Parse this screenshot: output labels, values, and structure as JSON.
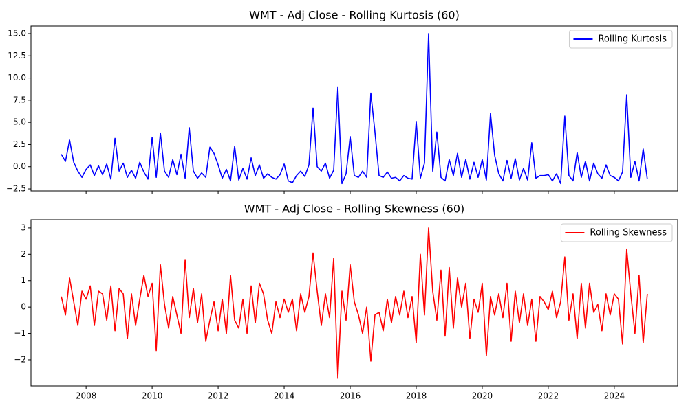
{
  "chart_data": [
    {
      "type": "line",
      "title": "WMT - Adj Close - Rolling Kurtosis (60)",
      "legend": "upper right",
      "x": [
        2007.25,
        2007.375,
        2007.5,
        2007.625,
        2007.75,
        2007.875,
        2008.0,
        2008.125,
        2008.25,
        2008.375,
        2008.5,
        2008.625,
        2008.75,
        2008.875,
        2009.0,
        2009.125,
        2009.25,
        2009.375,
        2009.5,
        2009.625,
        2009.75,
        2009.875,
        2010.0,
        2010.125,
        2010.25,
        2010.375,
        2010.5,
        2010.625,
        2010.75,
        2010.875,
        2011.0,
        2011.125,
        2011.25,
        2011.375,
        2011.5,
        2011.625,
        2011.75,
        2011.875,
        2012.0,
        2012.125,
        2012.25,
        2012.375,
        2012.5,
        2012.625,
        2012.75,
        2012.875,
        2013.0,
        2013.125,
        2013.25,
        2013.375,
        2013.5,
        2013.625,
        2013.75,
        2013.875,
        2014.0,
        2014.125,
        2014.25,
        2014.375,
        2014.5,
        2014.625,
        2014.75,
        2014.875,
        2015.0,
        2015.125,
        2015.25,
        2015.375,
        2015.5,
        2015.625,
        2015.75,
        2015.875,
        2016.0,
        2016.125,
        2016.25,
        2016.375,
        2016.5,
        2016.625,
        2016.75,
        2016.875,
        2017.0,
        2017.125,
        2017.25,
        2017.375,
        2017.5,
        2017.625,
        2017.75,
        2017.875,
        2018.0,
        2018.125,
        2018.25,
        2018.375,
        2018.5,
        2018.625,
        2018.75,
        2018.875,
        2019.0,
        2019.125,
        2019.25,
        2019.375,
        2019.5,
        2019.625,
        2019.75,
        2019.875,
        2020.0,
        2020.125,
        2020.25,
        2020.375,
        2020.5,
        2020.625,
        2020.75,
        2020.875,
        2021.0,
        2021.125,
        2021.25,
        2021.375,
        2021.5,
        2021.625,
        2021.75,
        2021.875,
        2022.0,
        2022.125,
        2022.25,
        2022.375,
        2022.5,
        2022.625,
        2022.75,
        2022.875,
        2023.0,
        2023.125,
        2023.25,
        2023.375,
        2023.5,
        2023.625,
        2023.75,
        2023.875,
        2024.0,
        2024.125,
        2024.25,
        2024.375,
        2024.5,
        2024.625,
        2024.75,
        2024.875,
        2025.0
      ],
      "series": [
        {
          "name": "Rolling Kurtosis",
          "color": "#0000ff",
          "values": [
            1.4,
            0.6,
            3.0,
            0.5,
            -0.5,
            -1.2,
            -0.3,
            0.2,
            -1.0,
            0.1,
            -0.9,
            0.3,
            -1.4,
            3.2,
            -0.5,
            0.4,
            -1.2,
            -0.4,
            -1.3,
            0.5,
            -0.6,
            -1.4,
            3.3,
            -1.2,
            3.8,
            -0.5,
            -1.2,
            0.8,
            -0.9,
            1.4,
            -1.3,
            4.4,
            -0.5,
            -1.3,
            -0.7,
            -1.2,
            2.2,
            1.5,
            0.2,
            -1.3,
            -0.3,
            -1.6,
            2.3,
            -1.5,
            -0.2,
            -1.4,
            1.0,
            -1.0,
            0.2,
            -1.3,
            -0.8,
            -1.2,
            -1.4,
            -0.9,
            0.3,
            -1.6,
            -1.8,
            -1.0,
            -0.5,
            -1.1,
            0.2,
            6.6,
            0.0,
            -0.5,
            0.4,
            -1.3,
            -0.4,
            9.0,
            -1.9,
            -0.8,
            3.4,
            -1.0,
            -1.2,
            -0.5,
            -1.2,
            8.3,
            3.9,
            -1.0,
            -1.2,
            -0.6,
            -1.3,
            -1.2,
            -1.6,
            -1.0,
            -1.3,
            -1.4,
            5.1,
            -1.3,
            0.4,
            15.0,
            -0.5,
            3.9,
            -1.2,
            -1.6,
            0.8,
            -1.0,
            1.5,
            -1.2,
            0.8,
            -1.4,
            0.5,
            -1.2,
            0.8,
            -1.5,
            6.0,
            1.3,
            -0.8,
            -1.6,
            0.7,
            -1.3,
            0.9,
            -1.5,
            -0.2,
            -1.5,
            2.7,
            -1.3,
            -1.0,
            -1.0,
            -0.9,
            -1.6,
            -0.8,
            -1.9,
            5.7,
            -1.0,
            -1.6,
            1.6,
            -1.2,
            0.6,
            -1.6,
            0.4,
            -0.8,
            -1.3,
            0.2,
            -1.0,
            -1.2,
            -1.6,
            -0.6,
            8.1,
            -1.2,
            0.6,
            -1.6,
            2.0,
            -1.4
          ]
        }
      ],
      "xlim": [
        2006.33,
        2025.92
      ],
      "ylim": [
        -2.73,
        15.85
      ],
      "yticks": [
        {
          "value": -2.5,
          "label": "−2.5"
        },
        {
          "value": 0,
          "label": "0.0"
        },
        2.5,
        {
          "value": 5,
          "label": "5.0"
        },
        7.5,
        {
          "value": 10,
          "label": "10.0"
        },
        12.5,
        {
          "value": 15,
          "label": "15.0"
        }
      ]
    },
    {
      "type": "line",
      "title": "WMT - Adj Close - Rolling Skewness (60)",
      "legend": "upper right",
      "x": [
        2007.25,
        2007.375,
        2007.5,
        2007.625,
        2007.75,
        2007.875,
        2008.0,
        2008.125,
        2008.25,
        2008.375,
        2008.5,
        2008.625,
        2008.75,
        2008.875,
        2009.0,
        2009.125,
        2009.25,
        2009.375,
        2009.5,
        2009.625,
        2009.75,
        2009.875,
        2010.0,
        2010.125,
        2010.25,
        2010.375,
        2010.5,
        2010.625,
        2010.75,
        2010.875,
        2011.0,
        2011.125,
        2011.25,
        2011.375,
        2011.5,
        2011.625,
        2011.75,
        2011.875,
        2012.0,
        2012.125,
        2012.25,
        2012.375,
        2012.5,
        2012.625,
        2012.75,
        2012.875,
        2013.0,
        2013.125,
        2013.25,
        2013.375,
        2013.5,
        2013.625,
        2013.75,
        2013.875,
        2014.0,
        2014.125,
        2014.25,
        2014.375,
        2014.5,
        2014.625,
        2014.75,
        2014.875,
        2015.0,
        2015.125,
        2015.25,
        2015.375,
        2015.5,
        2015.625,
        2015.75,
        2015.875,
        2016.0,
        2016.125,
        2016.25,
        2016.375,
        2016.5,
        2016.625,
        2016.75,
        2016.875,
        2017.0,
        2017.125,
        2017.25,
        2017.375,
        2017.5,
        2017.625,
        2017.75,
        2017.875,
        2018.0,
        2018.125,
        2018.25,
        2018.375,
        2018.5,
        2018.625,
        2018.75,
        2018.875,
        2019.0,
        2019.125,
        2019.25,
        2019.375,
        2019.5,
        2019.625,
        2019.75,
        2019.875,
        2020.0,
        2020.125,
        2020.25,
        2020.375,
        2020.5,
        2020.625,
        2020.75,
        2020.875,
        2021.0,
        2021.125,
        2021.25,
        2021.375,
        2021.5,
        2021.625,
        2021.75,
        2021.875,
        2022.0,
        2022.125,
        2022.25,
        2022.375,
        2022.5,
        2022.625,
        2022.75,
        2022.875,
        2023.0,
        2023.125,
        2023.25,
        2023.375,
        2023.5,
        2023.625,
        2023.75,
        2023.875,
        2024.0,
        2024.125,
        2024.25,
        2024.375,
        2024.5,
        2024.625,
        2024.75,
        2024.875,
        2025.0
      ],
      "series": [
        {
          "name": "Rolling Skewness",
          "color": "#ff0000",
          "values": [
            0.4,
            -0.3,
            1.1,
            0.2,
            -0.7,
            0.6,
            0.3,
            0.8,
            -0.7,
            0.6,
            0.5,
            -0.5,
            0.8,
            -0.9,
            0.7,
            0.5,
            -1.2,
            0.5,
            -0.7,
            0.3,
            1.2,
            0.4,
            0.9,
            -1.65,
            1.6,
            0.1,
            -0.8,
            0.4,
            -0.3,
            -1.0,
            1.8,
            -0.4,
            0.7,
            -0.6,
            0.5,
            -1.3,
            -0.5,
            0.2,
            -0.9,
            0.3,
            -1.0,
            1.2,
            -0.5,
            -0.8,
            0.3,
            -1.0,
            0.8,
            -0.6,
            0.9,
            0.5,
            -0.5,
            -1.0,
            0.2,
            -0.4,
            0.3,
            -0.2,
            0.3,
            -0.9,
            0.5,
            -0.2,
            0.4,
            2.05,
            0.6,
            -0.7,
            0.5,
            -0.4,
            1.85,
            -2.7,
            0.6,
            -0.5,
            1.6,
            0.2,
            -0.3,
            -1.0,
            0.0,
            -2.05,
            -0.3,
            -0.2,
            -0.9,
            0.3,
            -0.6,
            0.4,
            -0.3,
            0.6,
            -0.4,
            0.4,
            -1.35,
            2.0,
            -0.3,
            3.0,
            0.6,
            -0.5,
            1.4,
            -1.1,
            1.5,
            -0.8,
            1.1,
            0.0,
            0.9,
            -1.2,
            0.3,
            -0.2,
            0.9,
            -1.85,
            0.4,
            -0.3,
            0.5,
            -0.4,
            0.9,
            -1.3,
            0.6,
            -0.6,
            0.5,
            -0.7,
            0.3,
            -1.3,
            0.4,
            0.2,
            -0.1,
            0.6,
            -0.4,
            0.2,
            1.9,
            -0.5,
            0.5,
            -1.2,
            0.9,
            -0.8,
            0.9,
            -0.2,
            0.1,
            -0.9,
            0.5,
            -0.3,
            0.5,
            0.3,
            -1.4,
            2.2,
            0.5,
            -1.0,
            1.2,
            -1.35,
            0.5
          ]
        }
      ],
      "xlim": [
        2006.33,
        2025.92
      ],
      "xticks": [
        2008,
        2010,
        2012,
        2014,
        2016,
        2018,
        2020,
        2022,
        2024
      ],
      "ylim": [
        -2.99,
        3.31
      ],
      "yticks": [
        {
          "value": -2,
          "label": "−2"
        },
        {
          "value": -1,
          "label": "−1"
        },
        0,
        1,
        2,
        3
      ]
    }
  ]
}
